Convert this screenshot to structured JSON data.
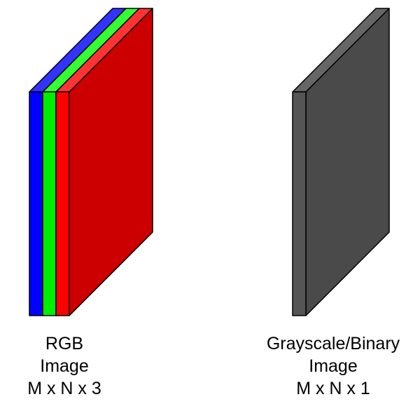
{
  "rgb": {
    "caption": [
      "RGB",
      "Image",
      "M x N x 3"
    ],
    "layers": [
      {
        "name": "blue",
        "face": "#0000ff",
        "top": "#3333ff"
      },
      {
        "name": "green",
        "face": "#00ee00",
        "top": "#33ff33"
      },
      {
        "name": "red",
        "face": "#ff0000",
        "top": "#ff3333"
      }
    ],
    "big_face": "#cc0000"
  },
  "gray": {
    "caption": [
      "Grayscale/Binary",
      "Image",
      "M x N x 1"
    ],
    "face": "#4a4a4a",
    "top": "#666666",
    "edge": "#555555"
  }
}
